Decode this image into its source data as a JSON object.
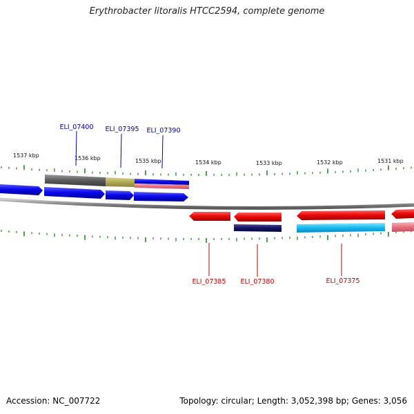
{
  "header": {
    "title": "Erythrobacter litoralis HTCC2594, complete genome"
  },
  "footer": {
    "accession": "Accession: NC_007722",
    "summary": "Topology: circular; Length: 3,052,398 bp; Genes: 3,056"
  },
  "colors": {
    "forward_cds": "#0a0aee",
    "reverse_cds": "#ee0a0a",
    "backbone": "#8a8a8a",
    "tick": "#1f8a1f",
    "forward_label": "#0000b0",
    "reverse_label": "#c00000"
  },
  "scale": {
    "unit": "kbp",
    "labels": [
      {
        "kbp": 1537,
        "text": "1537 kbp"
      },
      {
        "kbp": 1536,
        "text": "1536 kbp"
      },
      {
        "kbp": 1535,
        "text": "1535 kbp"
      },
      {
        "kbp": 1534,
        "text": "1534 kbp"
      },
      {
        "kbp": 1533,
        "text": "1533 kbp"
      },
      {
        "kbp": 1532,
        "text": "1532 kbp"
      },
      {
        "kbp": 1531,
        "text": "1531 kbp"
      }
    ]
  },
  "genes": [
    {
      "locus": "ELI_07400",
      "strand": "forward",
      "labeled": true
    },
    {
      "locus": "ELI_07395",
      "strand": "forward",
      "labeled": true
    },
    {
      "locus": "ELI_07390",
      "strand": "forward",
      "labeled": true
    },
    {
      "locus": "ELI_07385",
      "strand": "reverse",
      "labeled": true
    },
    {
      "locus": "ELI_07380",
      "strand": "reverse",
      "labeled": true
    },
    {
      "locus": "ELI_07375",
      "strand": "reverse",
      "labeled": true
    }
  ]
}
